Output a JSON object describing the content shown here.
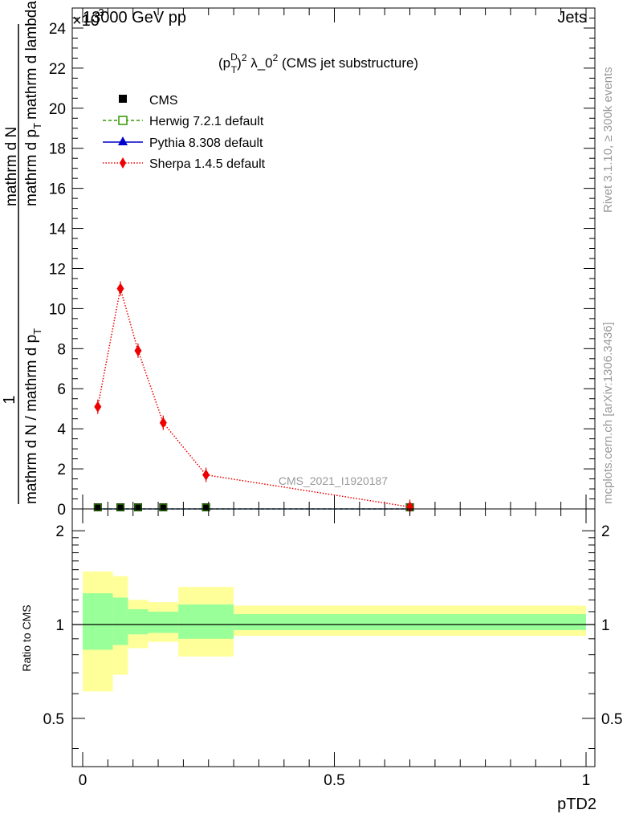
{
  "header": {
    "left_label": "13000 GeV pp",
    "right_label": "Jets",
    "exponent_label": "×10",
    "exponent_power": "-3"
  },
  "side_labels": {
    "rivet": "Rivet 3.1.10, ≥ 300k events",
    "mcplots": "mcplots.cern.ch [arXiv:1306.3436]"
  },
  "colors": {
    "cms": "#000000",
    "herwig": "#339900",
    "pythia": "#0000cc",
    "sherpa": "#ee0000",
    "band_outer": "#ffff99",
    "band_inner": "#99ff99",
    "watermark": "#999999"
  },
  "chart_data": [
    {
      "type": "line",
      "title": "(p_T^D)^2 λ_0^2 (CMS jet substructure)",
      "title_parts": {
        "p": "(p",
        "sup_d": "D",
        "sub_t": "T",
        "close": ")",
        "sup_2": "2",
        "lambda": " λ_0",
        "sup_2b": "2",
        "rest": " (CMS jet substructure)"
      },
      "watermark": "CMS_2021_I1920187",
      "ylabel": {
        "numerator": "1",
        "denominator": "mathrm d N / mathrm d p_T mathrm d p_T mathrm d lambda mathrm d N"
      },
      "ylabel_lines": {
        "one": "1",
        "den": "mathrm d N / mathrm d p",
        "den_sub": "T",
        "num_a": "mathrm d",
        "num_b": "p",
        "num_b_sub": "T",
        "num_c": "mathrm d lambda",
        "num_d": "mathrm d",
        "num_e": "N"
      },
      "xlim": [
        0,
        1
      ],
      "ylim": [
        0,
        25
      ],
      "y_scale_factor": "1e-3",
      "y_ticks": [
        0,
        2,
        4,
        6,
        8,
        10,
        12,
        14,
        16,
        18,
        20,
        22,
        24
      ],
      "y_tick_labels": [
        "0",
        "2",
        "4",
        "6",
        "8",
        "10",
        "12",
        "14",
        "16",
        "18",
        "20",
        "22",
        "24"
      ],
      "legend": [
        "CMS",
        "Herwig 7.2.1 default",
        "Pythia 8.308 default",
        "Sherpa 1.4.5 default"
      ],
      "legend_position": "top-left",
      "series": [
        {
          "name": "CMS",
          "x": [
            0.03,
            0.075,
            0.11,
            0.16,
            0.245,
            0.65
          ],
          "y": [
            0,
            0,
            0,
            0,
            0,
            0
          ]
        },
        {
          "name": "Herwig 7.2.1 default",
          "x": [
            0.03,
            0.075,
            0.11,
            0.16,
            0.245,
            0.65
          ],
          "y": [
            0,
            0,
            0,
            0,
            0,
            0
          ]
        },
        {
          "name": "Pythia 8.308 default",
          "x": [
            0.03,
            0.075,
            0.11,
            0.16,
            0.245,
            0.65
          ],
          "y": [
            0,
            0,
            0,
            0,
            0,
            0
          ]
        },
        {
          "name": "Sherpa 1.4.5 default",
          "x": [
            0.03,
            0.075,
            0.11,
            0.16,
            0.245,
            0.65
          ],
          "y": [
            5.1,
            11.0,
            7.9,
            4.3,
            1.7,
            0.1
          ]
        }
      ]
    },
    {
      "type": "area",
      "ylabel": "Ratio to CMS",
      "xlabel": "pTD2",
      "xlim": [
        0,
        1
      ],
      "ylim": [
        0.35,
        2.35
      ],
      "y_scale": "log",
      "x_ticks": [
        0,
        0.5,
        1
      ],
      "x_tick_labels": [
        "0",
        "0.5",
        "1"
      ],
      "y_ticks": [
        0.5,
        1,
        2
      ],
      "y_tick_labels": [
        "0.5",
        "1",
        "2"
      ],
      "reference_line": 1,
      "bins": [
        {
          "x_low": 0.0,
          "x_high": 0.06,
          "outer": [
            0.61,
            1.48
          ],
          "inner": [
            0.83,
            1.26
          ]
        },
        {
          "x_low": 0.06,
          "x_high": 0.09,
          "outer": [
            0.69,
            1.43
          ],
          "inner": [
            0.86,
            1.22
          ]
        },
        {
          "x_low": 0.09,
          "x_high": 0.13,
          "outer": [
            0.84,
            1.2
          ],
          "inner": [
            0.93,
            1.12
          ]
        },
        {
          "x_low": 0.13,
          "x_high": 0.19,
          "outer": [
            0.88,
            1.18
          ],
          "inner": [
            0.94,
            1.1
          ]
        },
        {
          "x_low": 0.19,
          "x_high": 0.3,
          "outer": [
            0.79,
            1.32
          ],
          "inner": [
            0.9,
            1.16
          ]
        },
        {
          "x_low": 0.3,
          "x_high": 1.0,
          "outer": [
            0.92,
            1.15
          ],
          "inner": [
            0.96,
            1.08
          ]
        }
      ]
    }
  ]
}
